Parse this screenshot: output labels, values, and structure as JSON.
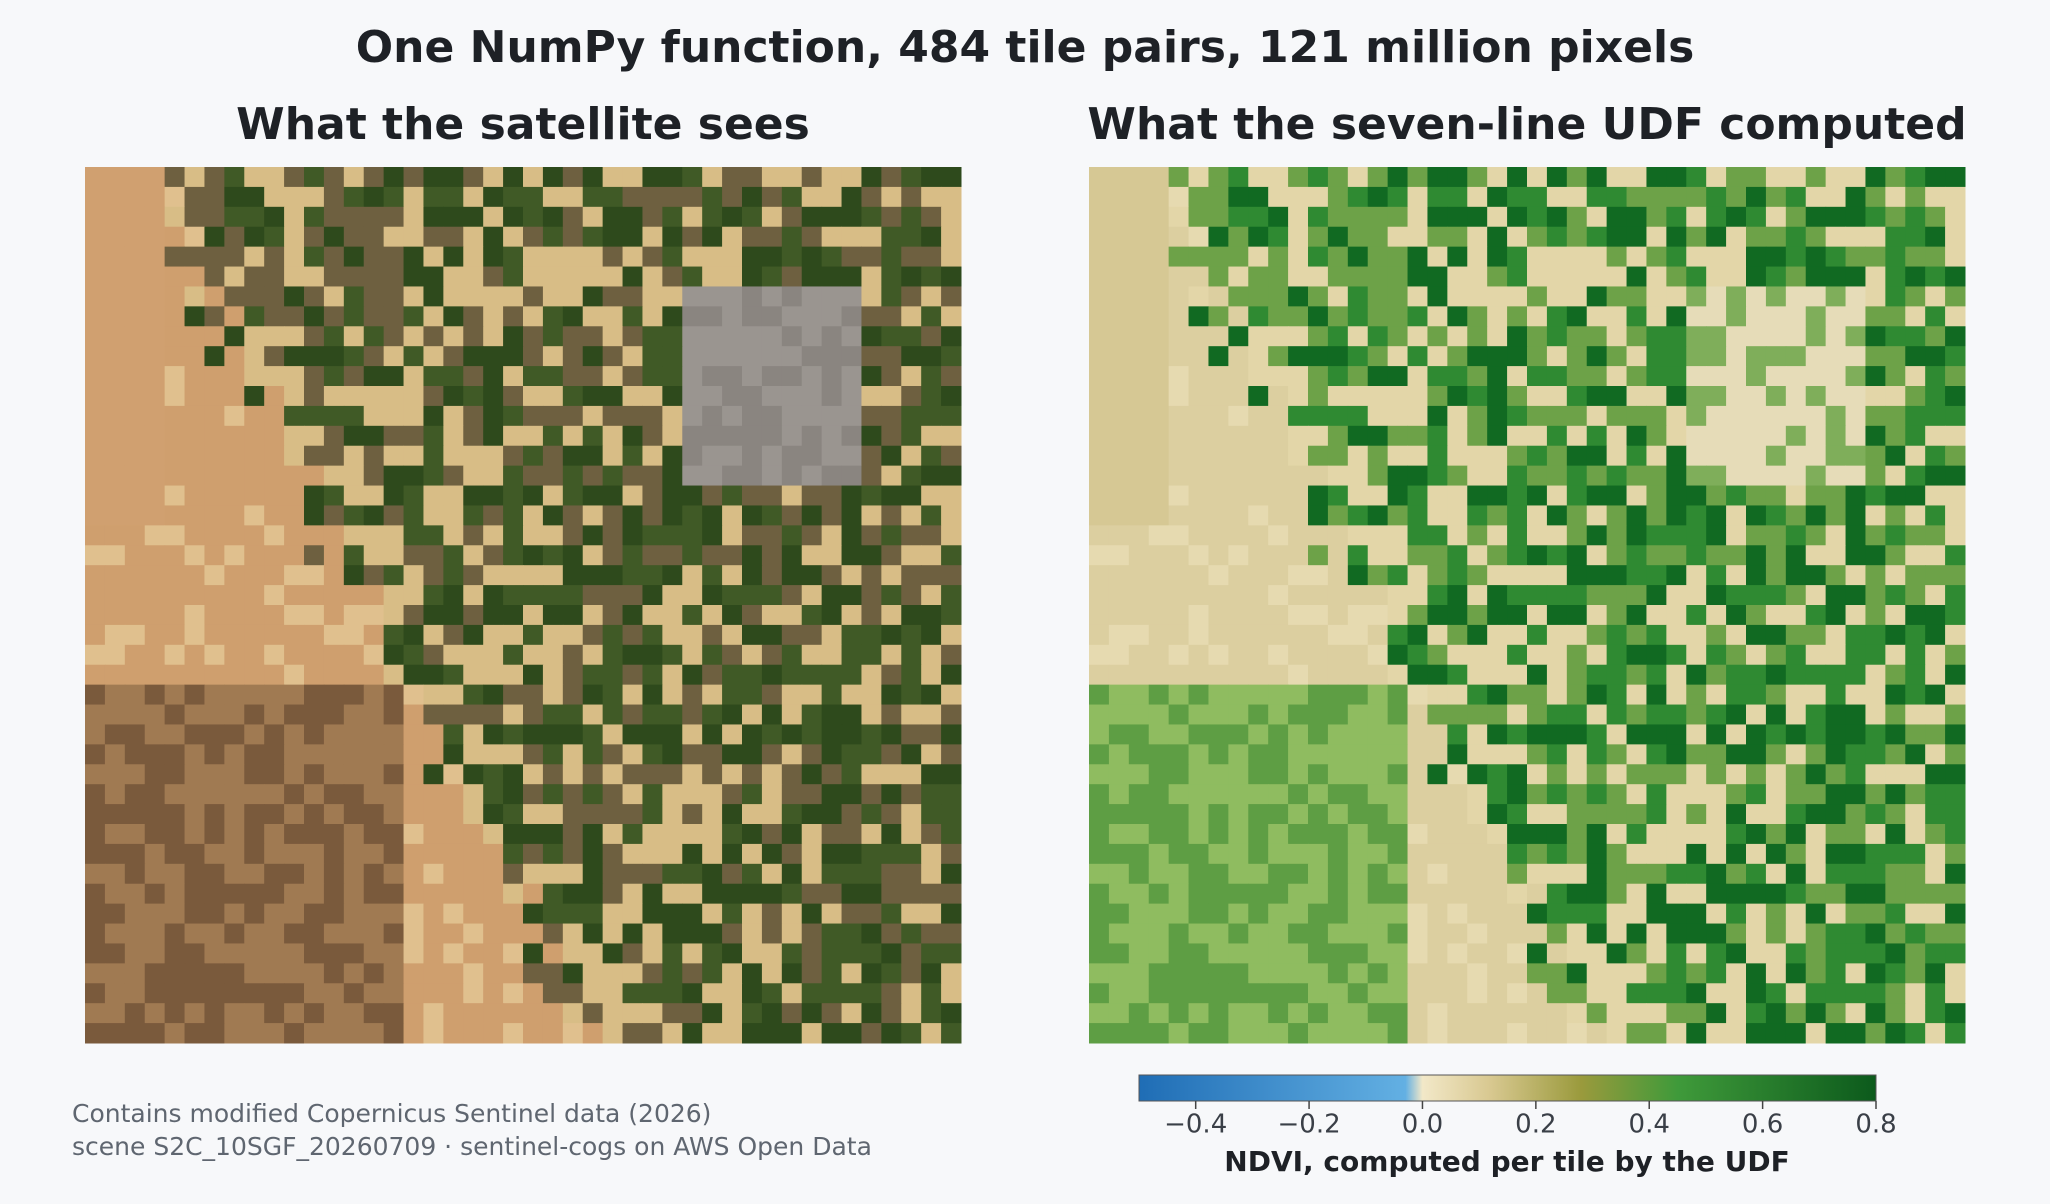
{
  "chart_data": {
    "type": "image",
    "title": "One NumPy function, 484 tile pairs, 121 million pixels",
    "panels": [
      {
        "title": "What the satellite sees"
      },
      {
        "title": "What the seven-line UDF computed"
      }
    ],
    "colorbar": {
      "label": "NDVI, computed per tile by the UDF",
      "xlim": [
        -0.5,
        0.8
      ],
      "xticks": [
        {
          "value": -0.4,
          "label": "−0.4"
        },
        {
          "value": -0.2,
          "label": "−0.2"
        },
        {
          "value": 0.0,
          "label": "0.0"
        },
        0.2,
        0.4,
        0.6,
        0.8
      ],
      "stops": [
        {
          "value": -0.5,
          "color": "#1f6db5"
        },
        {
          "value": -0.03,
          "color": "#63b0e3"
        },
        {
          "value": 0.0,
          "color": "#f2e8c8"
        },
        {
          "value": 0.12,
          "color": "#d8c890"
        },
        {
          "value": 0.28,
          "color": "#9a9a3c"
        },
        {
          "value": 0.45,
          "color": "#3f9a3a"
        },
        {
          "value": 0.8,
          "color": "#0c5a1c"
        }
      ]
    },
    "notes": [
      "Contains modified Copernicus Sentinel data (2026)",
      "scene S2C_10SGF_20260709 · sentinel-cogs on AWS Open Data"
    ]
  }
}
